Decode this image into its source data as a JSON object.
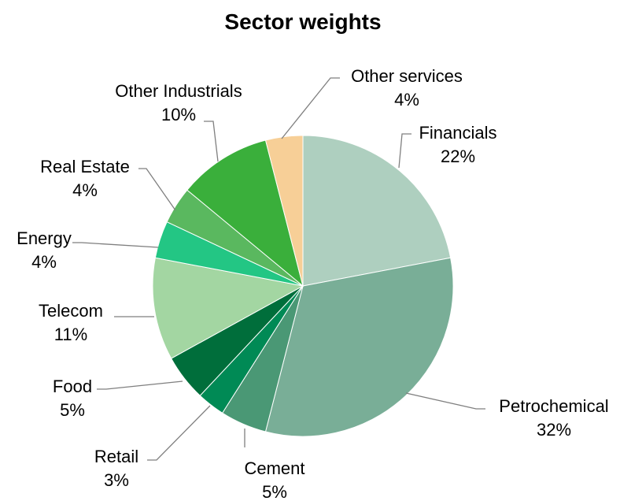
{
  "chart_data": {
    "type": "pie",
    "title": "Sector weights",
    "start_angle_deg": 0,
    "direction": "clockwise",
    "slices": [
      {
        "label": "Financials",
        "value": 22,
        "value_label": "22%",
        "color": "#aecfbf"
      },
      {
        "label": "Petrochemical",
        "value": 32,
        "value_label": "32%",
        "color": "#79ae97"
      },
      {
        "label": "Cement",
        "value": 5,
        "value_label": "5%",
        "color": "#4a9875"
      },
      {
        "label": "Retail",
        "value": 3,
        "value_label": "3%",
        "color": "#008a55"
      },
      {
        "label": "Food",
        "value": 5,
        "value_label": "5%",
        "color": "#006e3b"
      },
      {
        "label": "Telecom",
        "value": 11,
        "value_label": "11%",
        "color": "#a3d6a2"
      },
      {
        "label": "Energy",
        "value": 4,
        "value_label": "4%",
        "color": "#23c684"
      },
      {
        "label": "Real Estate",
        "value": 4,
        "value_label": "4%",
        "color": "#5ab85f"
      },
      {
        "label": "Other Industrials",
        "value": 10,
        "value_label": "10%",
        "color": "#3aaf3b"
      },
      {
        "label": "Other services",
        "value": 4,
        "value_label": "4%",
        "color": "#f7cf97"
      }
    ]
  }
}
